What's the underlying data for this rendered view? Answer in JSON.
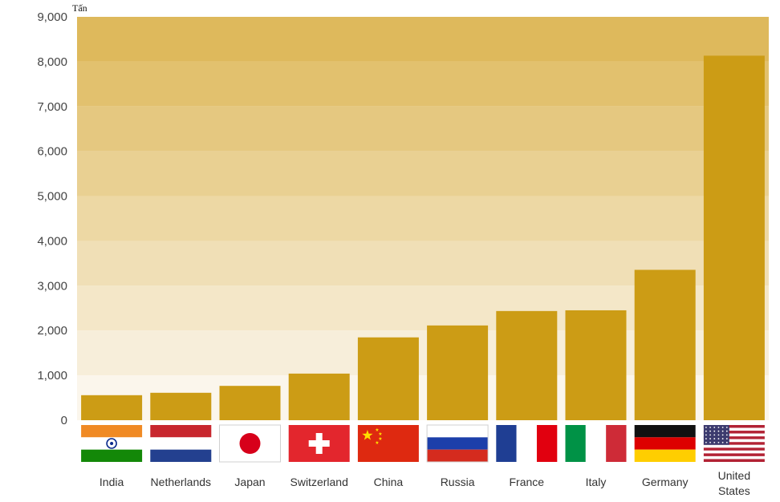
{
  "chart_data": {
    "type": "bar",
    "unit_label": "Tấn",
    "categories": [
      {
        "lines": [
          "India"
        ],
        "flag": "india-flag-icon"
      },
      {
        "lines": [
          "Netherlands"
        ],
        "flag": "netherlands-flag-icon"
      },
      {
        "lines": [
          "Japan"
        ],
        "flag": "japan-flag-icon"
      },
      {
        "lines": [
          "Switzerland"
        ],
        "flag": "switzerland-flag-icon"
      },
      {
        "lines": [
          "China"
        ],
        "flag": "china-flag-icon"
      },
      {
        "lines": [
          "Russia"
        ],
        "flag": "russia-flag-icon"
      },
      {
        "lines": [
          "France"
        ],
        "flag": "france-flag-icon"
      },
      {
        "lines": [
          "Italy"
        ],
        "flag": "italy-flag-icon"
      },
      {
        "lines": [
          "Germany"
        ],
        "flag": "germany-flag-icon"
      },
      {
        "lines": [
          "United",
          "States"
        ],
        "flag": "united-states-flag-icon"
      }
    ],
    "values": [
      558,
      612,
      766,
      1040,
      1848,
      2114,
      2436,
      2452,
      3355,
      8133
    ],
    "ylim": [
      0,
      9000
    ],
    "yticks": [
      "0",
      "1,000",
      "2,000",
      "3,000",
      "4,000",
      "5,000",
      "6,000",
      "7,000",
      "8,000",
      "9,000"
    ],
    "grid": false,
    "colors": {
      "bar": "#CC9C15",
      "background_top": "#DEB95C",
      "background_bottom": "#FBF6EC"
    }
  }
}
